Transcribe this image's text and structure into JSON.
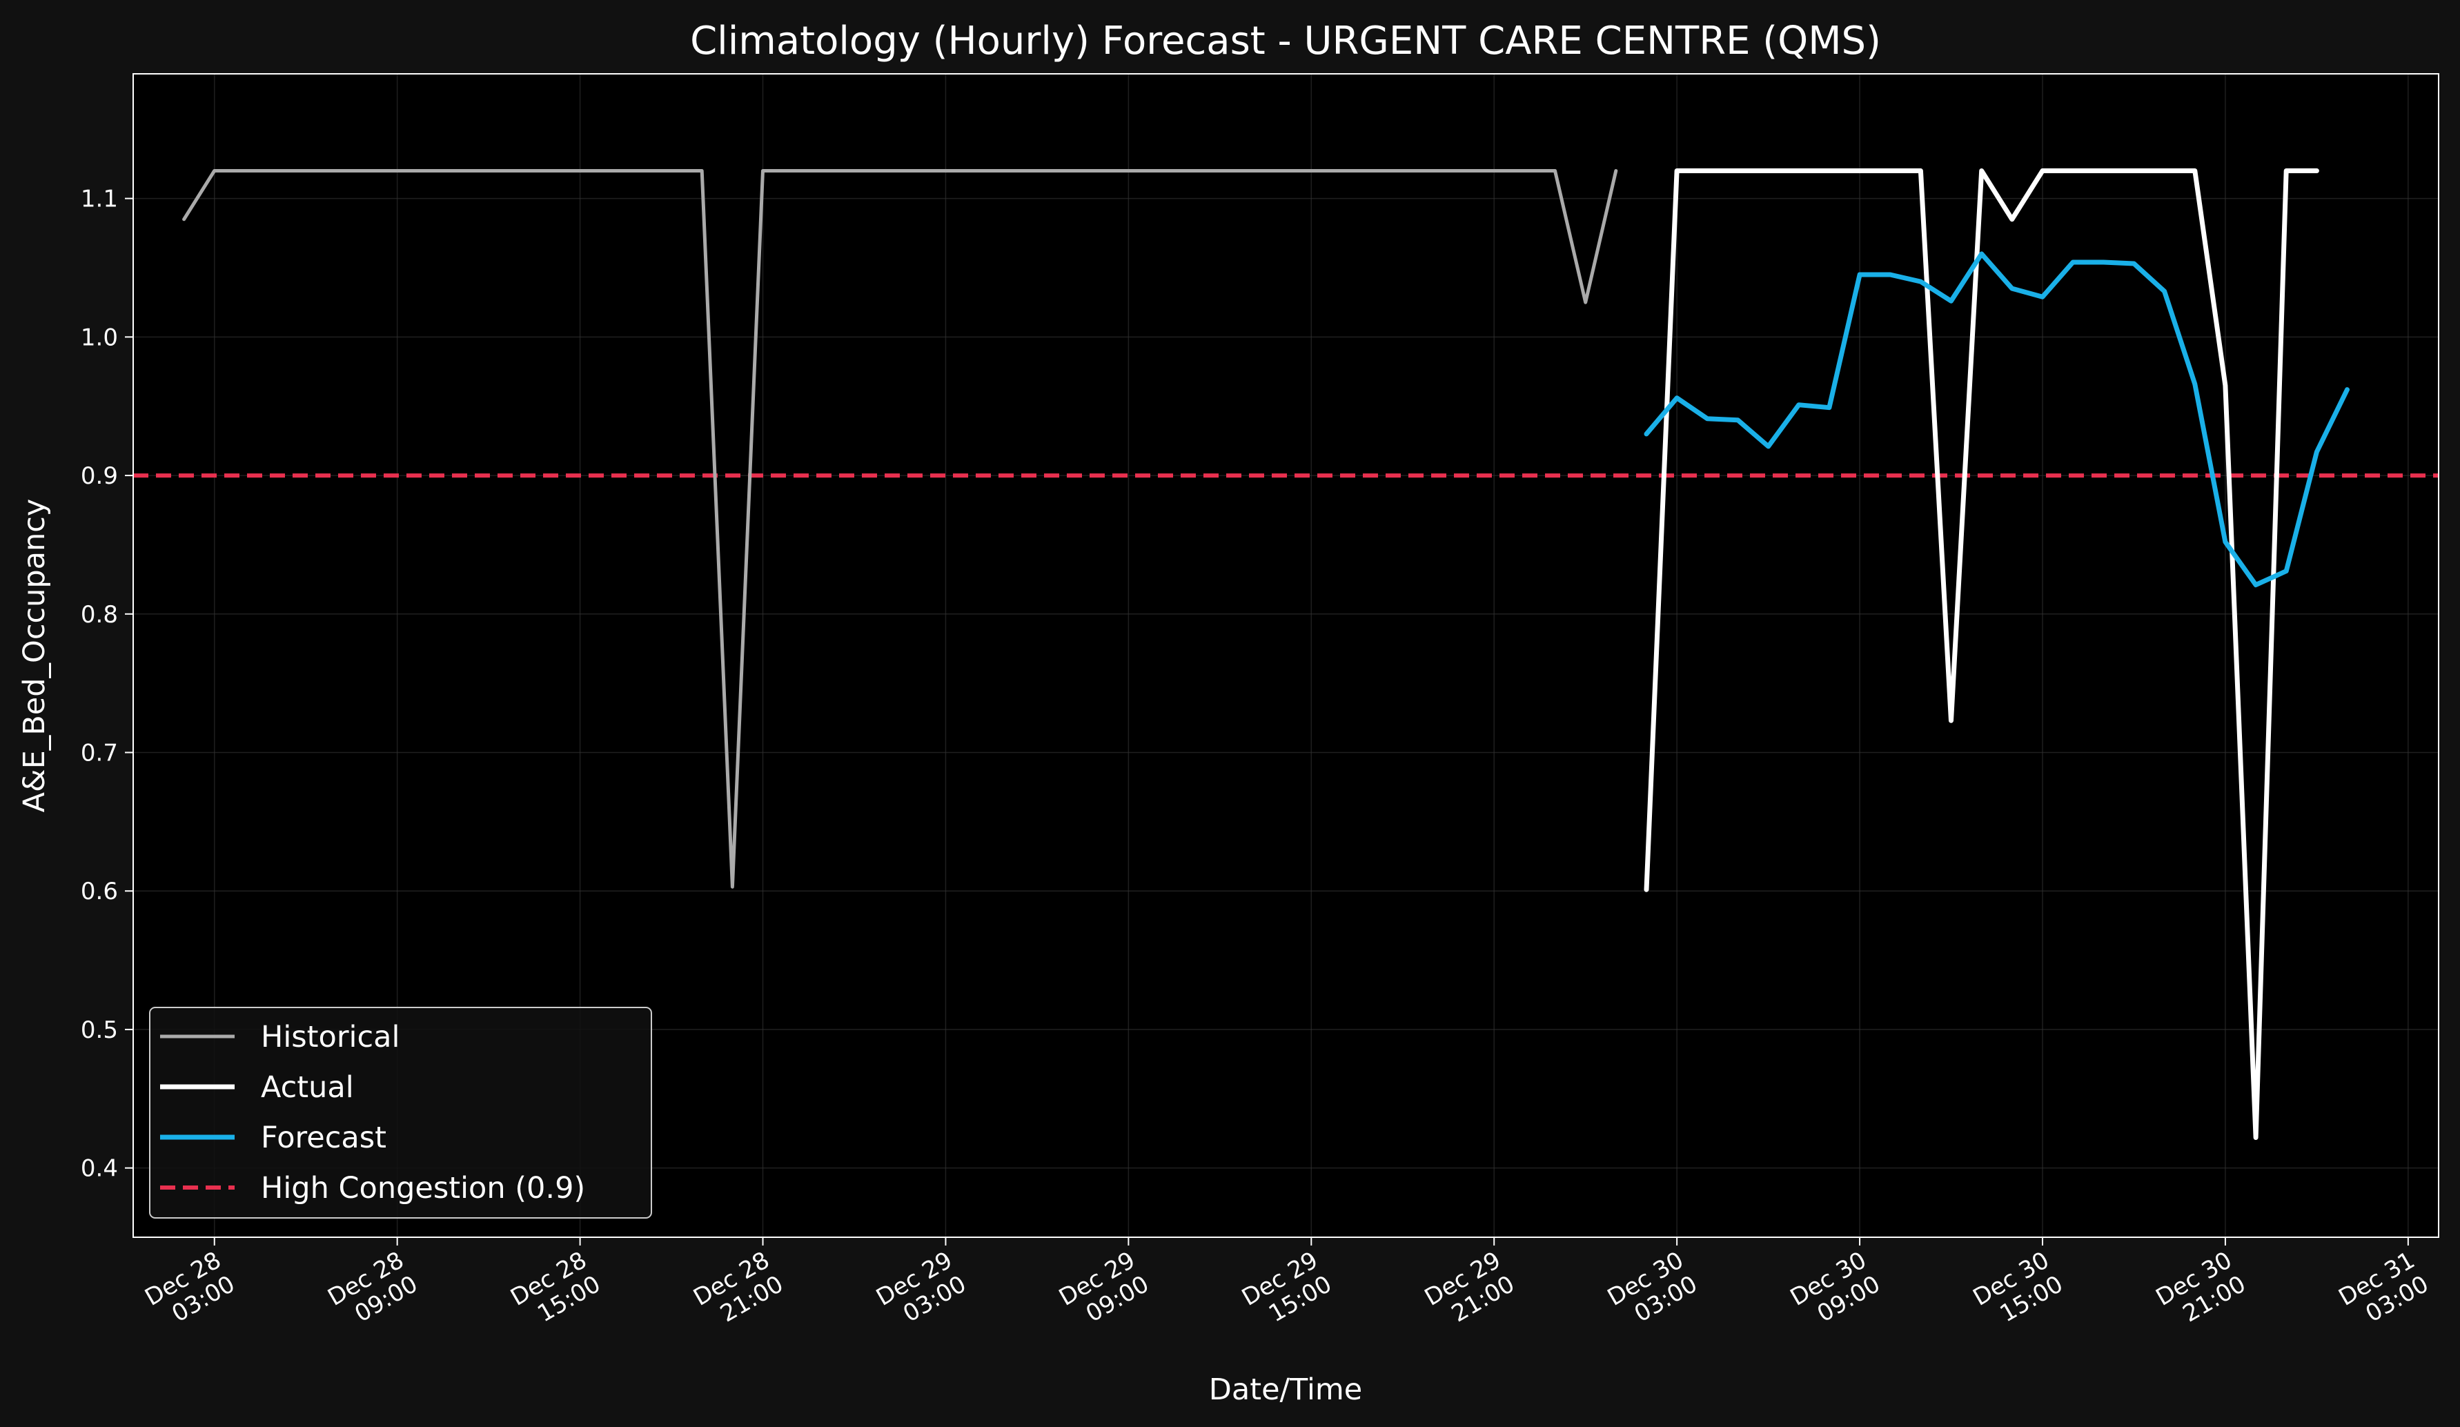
{
  "chart_data": {
    "type": "line",
    "title": "Climatology (Hourly) Forecast - URGENT CARE CENTRE (QMS)",
    "xlabel": "Date/Time",
    "ylabel": "A&E_Bed_Occupancy",
    "xlim": [
      "2024-12-28 00:20",
      "2024-12-31 04:00"
    ],
    "ylim": [
      0.35,
      1.19
    ],
    "grid": true,
    "legend_position": "lower-left",
    "x_ticks": [
      {
        "t": "2024-12-28 03:00",
        "line1": "Dec 28",
        "line2": "03:00"
      },
      {
        "t": "2024-12-28 09:00",
        "line1": "Dec 28",
        "line2": "09:00"
      },
      {
        "t": "2024-12-28 15:00",
        "line1": "Dec 28",
        "line2": "15:00"
      },
      {
        "t": "2024-12-28 21:00",
        "line1": "Dec 28",
        "line2": "21:00"
      },
      {
        "t": "2024-12-29 03:00",
        "line1": "Dec 29",
        "line2": "03:00"
      },
      {
        "t": "2024-12-29 09:00",
        "line1": "Dec 29",
        "line2": "09:00"
      },
      {
        "t": "2024-12-29 15:00",
        "line1": "Dec 29",
        "line2": "15:00"
      },
      {
        "t": "2024-12-29 21:00",
        "line1": "Dec 29",
        "line2": "21:00"
      },
      {
        "t": "2024-12-30 03:00",
        "line1": "Dec 30",
        "line2": "03:00"
      },
      {
        "t": "2024-12-30 09:00",
        "line1": "Dec 30",
        "line2": "09:00"
      },
      {
        "t": "2024-12-30 15:00",
        "line1": "Dec 30",
        "line2": "15:00"
      },
      {
        "t": "2024-12-30 21:00",
        "line1": "Dec 30",
        "line2": "21:00"
      },
      {
        "t": "2024-12-31 03:00",
        "line1": "Dec 31",
        "line2": "03:00"
      }
    ],
    "y_ticks": [
      0.4,
      0.5,
      0.6,
      0.7,
      0.8,
      0.9,
      1.0,
      1.1
    ],
    "y_tick_labels": [
      "0.4",
      "0.5",
      "0.6",
      "0.7",
      "0.8",
      "0.9",
      "1.0",
      "1.1"
    ],
    "series": [
      {
        "name": "Historical",
        "color": "#aaaaaa",
        "points": [
          [
            "2024-12-28 02:00",
            1.085
          ],
          [
            "2024-12-28 03:00",
            1.12
          ],
          [
            "2024-12-28 19:00",
            1.12
          ],
          [
            "2024-12-28 20:00",
            0.603
          ],
          [
            "2024-12-28 21:00",
            1.12
          ],
          [
            "2024-12-29 23:00",
            1.12
          ],
          [
            "2024-12-30 00:00",
            1.025
          ],
          [
            "2024-12-30 01:00",
            1.12
          ]
        ]
      },
      {
        "name": "Actual",
        "color": "#ffffff",
        "points": [
          [
            "2024-12-30 02:00",
            0.601
          ],
          [
            "2024-12-30 03:00",
            1.12
          ],
          [
            "2024-12-30 11:00",
            1.12
          ],
          [
            "2024-12-30 12:00",
            0.723
          ],
          [
            "2024-12-30 13:00",
            1.12
          ],
          [
            "2024-12-30 14:00",
            1.085
          ],
          [
            "2024-12-30 15:00",
            1.12
          ],
          [
            "2024-12-30 20:00",
            1.12
          ],
          [
            "2024-12-30 21:00",
            0.965
          ],
          [
            "2024-12-30 22:00",
            0.422
          ],
          [
            "2024-12-30 23:00",
            1.12
          ],
          [
            "2024-12-31 00:00",
            1.12
          ]
        ]
      },
      {
        "name": "Forecast",
        "color": "#1ab0e8",
        "points": [
          [
            "2024-12-30 02:00",
            0.93
          ],
          [
            "2024-12-30 03:00",
            0.956
          ],
          [
            "2024-12-30 04:00",
            0.941
          ],
          [
            "2024-12-30 05:00",
            0.94
          ],
          [
            "2024-12-30 06:00",
            0.921
          ],
          [
            "2024-12-30 07:00",
            0.951
          ],
          [
            "2024-12-30 08:00",
            0.949
          ],
          [
            "2024-12-30 09:00",
            1.045
          ],
          [
            "2024-12-30 10:00",
            1.045
          ],
          [
            "2024-12-30 11:00",
            1.04
          ],
          [
            "2024-12-30 12:00",
            1.026
          ],
          [
            "2024-12-30 13:00",
            1.06
          ],
          [
            "2024-12-30 14:00",
            1.035
          ],
          [
            "2024-12-30 15:00",
            1.029
          ],
          [
            "2024-12-30 16:00",
            1.054
          ],
          [
            "2024-12-30 17:00",
            1.054
          ],
          [
            "2024-12-30 18:00",
            1.053
          ],
          [
            "2024-12-30 19:00",
            1.033
          ],
          [
            "2024-12-30 20:00",
            0.966
          ],
          [
            "2024-12-30 21:00",
            0.852
          ],
          [
            "2024-12-30 22:00",
            0.821
          ],
          [
            "2024-12-30 23:00",
            0.831
          ],
          [
            "2024-12-31 00:00",
            0.917
          ],
          [
            "2024-12-31 01:00",
            0.962
          ]
        ]
      }
    ],
    "reference_line": {
      "name": "High Congestion (0.9)",
      "y": 0.9,
      "color": "#e8304f",
      "style": "dashed"
    },
    "legend": [
      "Historical",
      "Actual",
      "Forecast",
      "High Congestion (0.9)"
    ]
  }
}
